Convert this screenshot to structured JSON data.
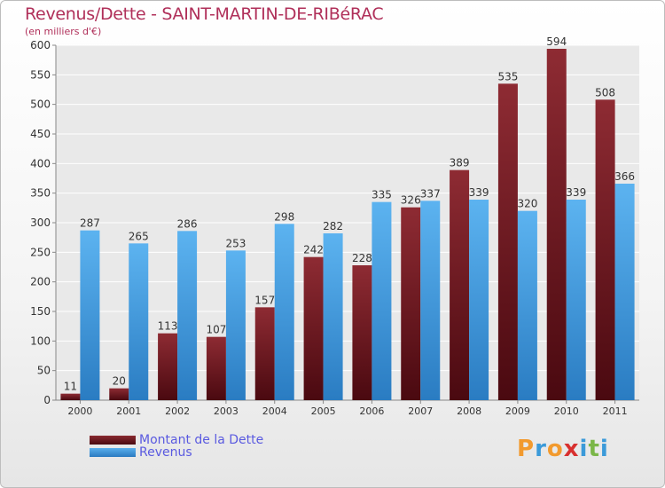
{
  "chart_data": {
    "type": "bar",
    "title": "Revenus/Dette - SAINT-MARTIN-DE-RIBéRAC",
    "subtitle": "(en milliers d'€)",
    "categories": [
      "2000",
      "2001",
      "2002",
      "2003",
      "2004",
      "2005",
      "2006",
      "2007",
      "2008",
      "2009",
      "2010",
      "2011"
    ],
    "series": [
      {
        "name": "Montant de la Dette",
        "color": "#7a1a22",
        "values": [
          11,
          20,
          113,
          107,
          157,
          242,
          228,
          326,
          389,
          535,
          594,
          508
        ]
      },
      {
        "name": "Revenus",
        "color": "#3d9be3",
        "values": [
          287,
          265,
          286,
          253,
          298,
          282,
          335,
          337,
          339,
          320,
          339,
          366
        ]
      }
    ],
    "yticks": [
      0,
      50,
      100,
      150,
      200,
      250,
      300,
      350,
      400,
      450,
      500,
      550,
      600
    ],
    "ylim": [
      0,
      600
    ],
    "xlabel": "",
    "ylabel": "",
    "grid": true
  },
  "legend": {
    "debt_label": "Montant de la Dette",
    "revenue_label": "Revenus"
  },
  "logo": {
    "letters": [
      "P",
      "r",
      "o",
      "x",
      "i",
      "t",
      "i"
    ],
    "colors": [
      "#f29a2e",
      "#3b9ad9",
      "#f29a2e",
      "#d8302f",
      "#3b9ad9",
      "#7ab648",
      "#3b9ad9"
    ]
  }
}
